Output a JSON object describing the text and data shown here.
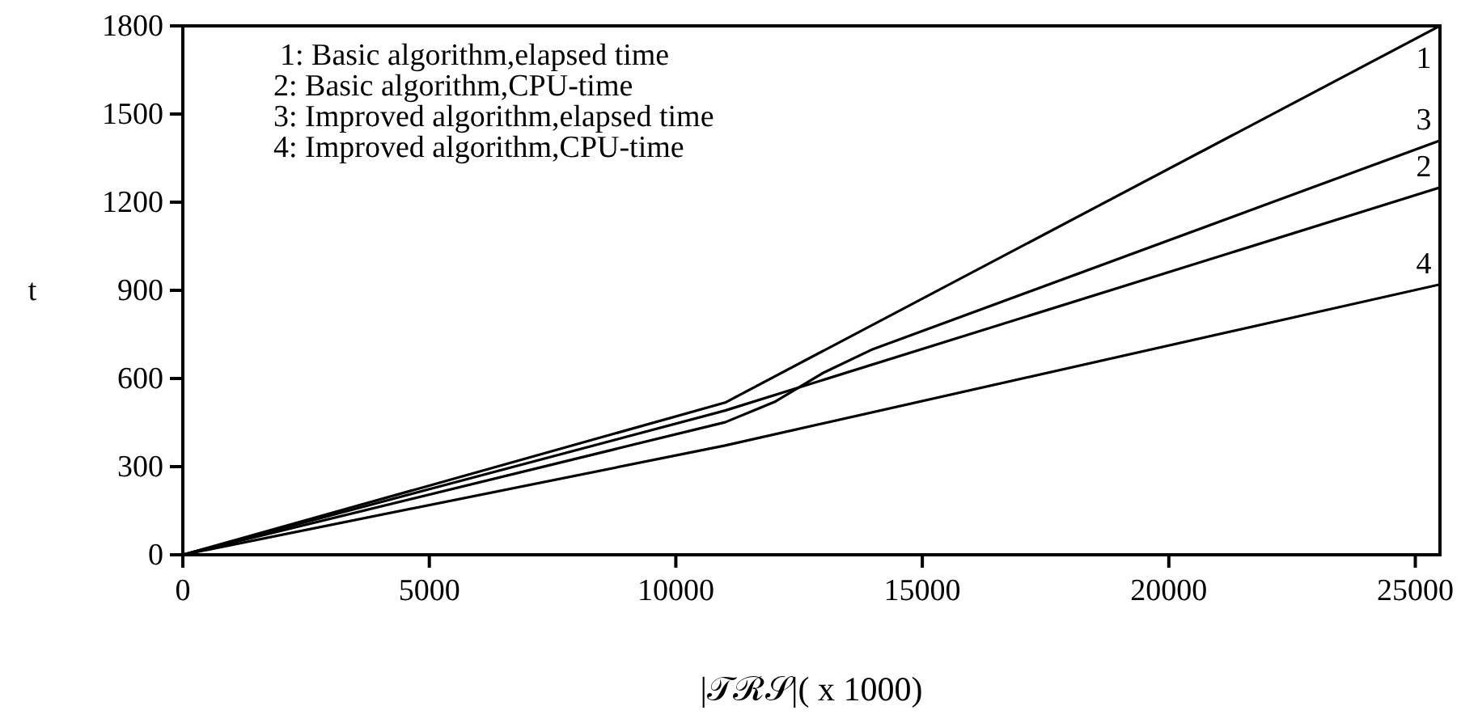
{
  "chart_data": {
    "type": "line",
    "xlabel": "|𝒯ℛ𝒮|( x 1000)",
    "ylabel": "t",
    "xlim": [
      0,
      25500
    ],
    "xticks": [
      0,
      5000,
      10000,
      15000,
      20000,
      25000
    ],
    "ylim": [
      0,
      1800
    ],
    "yticks": [
      0,
      300,
      600,
      900,
      1200,
      1500,
      1800
    ],
    "grid": false,
    "marker": "none",
    "line_style": "solid",
    "series": [
      {
        "name": "1",
        "color": "#000000",
        "x": [
          0,
          11000,
          25500
        ],
        "values": [
          0,
          518,
          1800
        ]
      },
      {
        "name": "2",
        "color": "#000000",
        "x": [
          0,
          11000,
          25500
        ],
        "values": [
          0,
          491,
          1250
        ]
      },
      {
        "name": "3",
        "color": "#000000",
        "x": [
          0,
          11000,
          12000,
          13000,
          14000,
          25500
        ],
        "values": [
          0,
          451,
          520,
          620,
          700,
          1410
        ]
      },
      {
        "name": "4",
        "color": "#000000",
        "x": [
          0,
          11000,
          25500
        ],
        "values": [
          0,
          372,
          920
        ]
      }
    ],
    "annotations": [
      "1: Basic algorithm,elapsed time",
      "2: Basic algorithm,CPU-time",
      "3: Improved algorithm,elapsed time",
      "4: Improved algorithm,CPU-time"
    ]
  }
}
